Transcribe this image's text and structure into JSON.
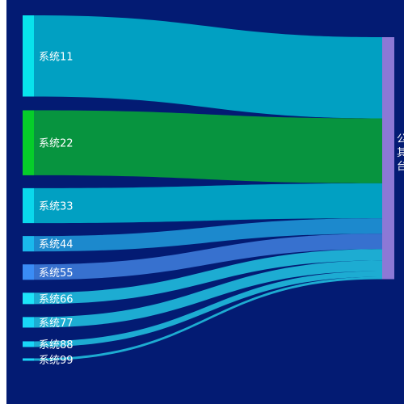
{
  "chart_data": {
    "type": "sankey",
    "background": "#031b73",
    "target": {
      "name": "公共平台",
      "visible_text": "公\n其\n台",
      "color": "#8c78d6"
    },
    "sources": [
      {
        "name": "系统11",
        "value": 100,
        "color": "#08e3ec",
        "link_color": "#01a8c6"
      },
      {
        "name": "系统22",
        "value": 80,
        "color": "#06cd2a",
        "link_color": "#079b3c"
      },
      {
        "name": "系统33",
        "value": 43,
        "color": "#0ad8ec",
        "link_color": "#01a8c6"
      },
      {
        "name": "系统44",
        "value": 19,
        "color": "#1ab8ec",
        "link_color": "#1e8fd2"
      },
      {
        "name": "系统55",
        "value": 19,
        "color": "#3a8cf5",
        "link_color": "#3a76d4"
      },
      {
        "name": "系统66",
        "value": 14,
        "color": "#1de3f8",
        "link_color": "#1fb4d7"
      },
      {
        "name": "系统77",
        "value": 13,
        "color": "#19d6f7",
        "link_color": "#1fb4d7"
      },
      {
        "name": "系统88",
        "value": 7,
        "color": "#19d6f7",
        "link_color": "#1fb4d7"
      },
      {
        "name": "系统99",
        "value": 3,
        "color": "#19d6f7",
        "link_color": "#1fb4d7"
      }
    ]
  }
}
